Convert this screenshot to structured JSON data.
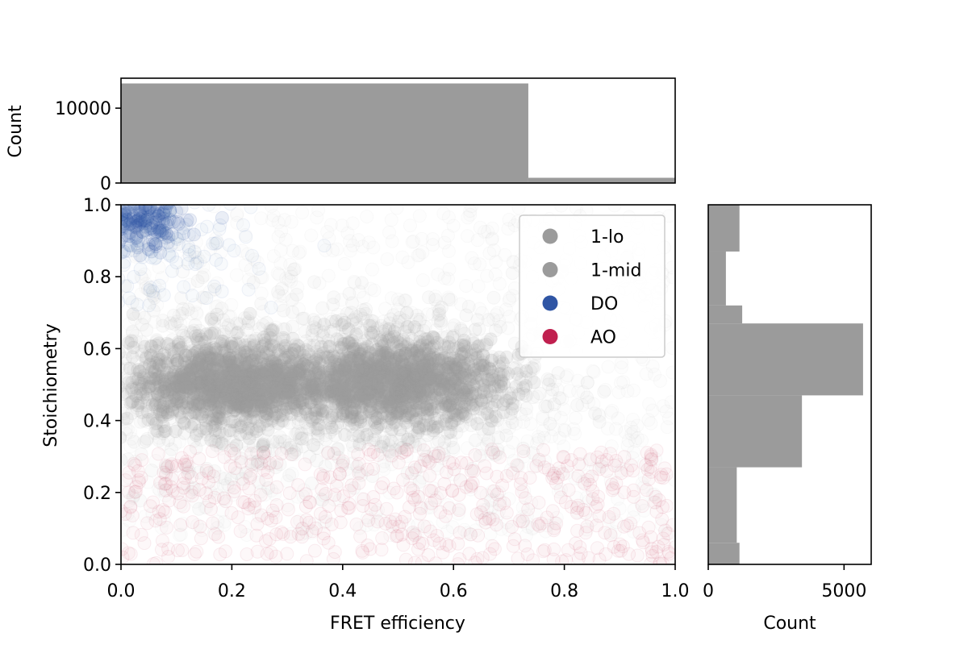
{
  "chart_data": [
    {
      "type": "scatter",
      "panel": "main",
      "xlabel": "FRET efficiency",
      "ylabel": "Stoichiometry",
      "xlim": [
        0,
        1
      ],
      "ylim": [
        0,
        1
      ],
      "xticks": [
        "0.0",
        "0.2",
        "0.4",
        "0.6",
        "0.8",
        "1.0"
      ],
      "yticks": [
        "0.0",
        "0.2",
        "0.4",
        "0.6",
        "0.8",
        "1.0"
      ],
      "legend_position": "top-right",
      "series": [
        {
          "name": "1-lo",
          "color": "#9b9b9b",
          "center": [
            0.2,
            0.5
          ],
          "spread": [
            0.09,
            0.055
          ]
        },
        {
          "name": "1-mid",
          "color": "#9b9b9b",
          "center": [
            0.5,
            0.51
          ],
          "spread": [
            0.09,
            0.055
          ]
        },
        {
          "name": "DO",
          "color": "#2f55a4",
          "center": [
            0.04,
            0.95
          ],
          "spread": [
            0.04,
            0.04
          ]
        },
        {
          "name": "AO",
          "color": "#c0204f",
          "center": [
            0.45,
            0.15
          ],
          "spread": [
            0.3,
            0.08
          ]
        }
      ]
    },
    {
      "type": "bar",
      "panel": "top-histogram",
      "ylabel": "Count",
      "ylim": [
        0,
        14000
      ],
      "yticks": [
        "0",
        "10000"
      ],
      "bins": [
        {
          "x0": 0.0,
          "x1": 0.735,
          "value": 13300
        },
        {
          "x0": 0.735,
          "x1": 1.0,
          "value": 700
        }
      ],
      "color": "#9b9b9b"
    },
    {
      "type": "bar",
      "panel": "right-histogram",
      "orientation": "horizontal",
      "xlabel": "Count",
      "xlim": [
        0,
        6000
      ],
      "xticks": [
        "0",
        "5000"
      ],
      "bins": [
        {
          "y0": 0.0,
          "y1": 0.06,
          "value": 1150
        },
        {
          "y0": 0.06,
          "y1": 0.27,
          "value": 1050
        },
        {
          "y0": 0.27,
          "y1": 0.47,
          "value": 3450
        },
        {
          "y0": 0.47,
          "y1": 0.67,
          "value": 5700
        },
        {
          "y0": 0.67,
          "y1": 0.72,
          "value": 1250
        },
        {
          "y0": 0.72,
          "y1": 0.87,
          "value": 650
        },
        {
          "y0": 0.87,
          "y1": 1.0,
          "value": 1150
        }
      ],
      "color": "#9b9b9b"
    }
  ]
}
